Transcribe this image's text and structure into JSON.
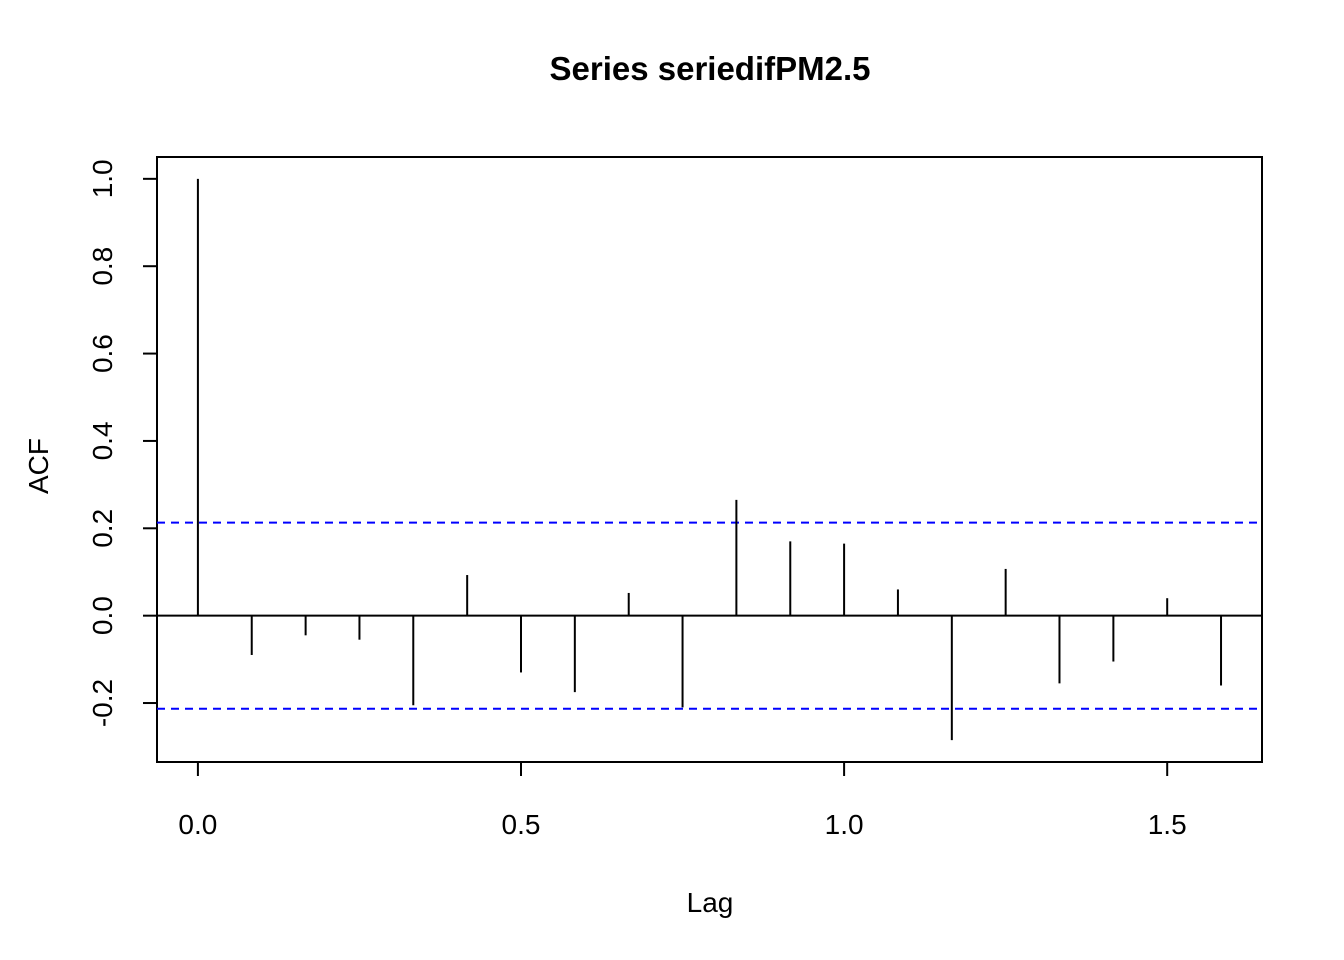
{
  "chart_data": {
    "type": "bar",
    "title": "Series  seriedifPM2.5",
    "xlabel": "Lag",
    "ylabel": "ACF",
    "xlim": [
      -0.0633,
      1.6467
    ],
    "ylim": [
      -0.335,
      1.05
    ],
    "x_ticks": [
      {
        "value": 0.0,
        "label": "0.0"
      },
      {
        "value": 0.5,
        "label": "0.5"
      },
      {
        "value": 1.0,
        "label": "1.0"
      },
      {
        "value": 1.5,
        "label": "1.5"
      }
    ],
    "y_ticks": [
      {
        "value": -0.2,
        "label": "-0.2"
      },
      {
        "value": 0.0,
        "label": "0.0"
      },
      {
        "value": 0.2,
        "label": "0.2"
      },
      {
        "value": 0.4,
        "label": "0.4"
      },
      {
        "value": 0.6,
        "label": "0.6"
      },
      {
        "value": 0.8,
        "label": "0.8"
      },
      {
        "value": 1.0,
        "label": "1.0"
      }
    ],
    "lags": [
      0.0,
      0.0833,
      0.1667,
      0.25,
      0.3333,
      0.4167,
      0.5,
      0.5833,
      0.6667,
      0.75,
      0.8333,
      0.9167,
      1.0,
      1.0833,
      1.1667,
      1.25,
      1.3333,
      1.4167,
      1.5,
      1.5833
    ],
    "acf": [
      1.0,
      -0.09,
      -0.045,
      -0.055,
      -0.205,
      0.093,
      -0.13,
      -0.175,
      0.052,
      -0.21,
      0.265,
      0.17,
      0.165,
      0.06,
      -0.285,
      0.107,
      -0.155,
      -0.105,
      0.04,
      -0.16
    ],
    "confidence_bounds": [
      0.213,
      -0.213
    ],
    "colors": {
      "bounds": "#0000ff",
      "bars": "#000000",
      "zero_line": "#000000"
    },
    "grid": false
  }
}
